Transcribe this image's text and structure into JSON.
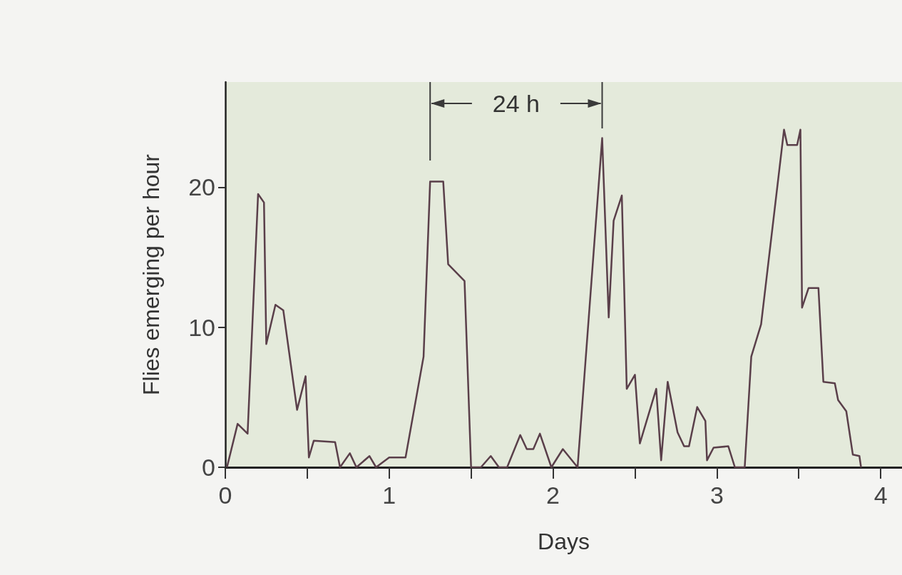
{
  "chart_data": {
    "type": "line",
    "xlabel": "Days",
    "ylabel": "Flies emerging per hour",
    "x": [
      0.01,
      0.075,
      0.136,
      0.2,
      0.236,
      0.25,
      0.306,
      0.354,
      0.438,
      0.49,
      0.51,
      0.54,
      0.67,
      0.7,
      0.76,
      0.8,
      0.88,
      0.92,
      1.0,
      1.1,
      1.21,
      1.25,
      1.33,
      1.36,
      1.46,
      1.5,
      1.56,
      1.62,
      1.67,
      1.72,
      1.8,
      1.84,
      1.88,
      1.92,
      1.99,
      2.06,
      2.15,
      2.3,
      2.34,
      2.37,
      2.42,
      2.45,
      2.5,
      2.53,
      2.63,
      2.66,
      2.7,
      2.76,
      2.8,
      2.83,
      2.88,
      2.93,
      2.94,
      2.98,
      3.07,
      3.11,
      3.17,
      3.21,
      3.27,
      3.41,
      3.43,
      3.49,
      3.51,
      3.52,
      3.56,
      3.62,
      3.65,
      3.72,
      3.74,
      3.79,
      3.83,
      3.87,
      3.88
    ],
    "series": [
      {
        "color": "#5a3f4a",
        "values": [
          0,
          3.1,
          2.4,
          19.5,
          18.9,
          8.8,
          11.6,
          11.2,
          4.1,
          6.5,
          0.7,
          1.9,
          1.8,
          0,
          1.0,
          0,
          0.8,
          0,
          0.7,
          0.7,
          7.9,
          20.4,
          20.4,
          14.5,
          13.3,
          0,
          0,
          0.8,
          0,
          0,
          2.3,
          1.3,
          1.3,
          2.4,
          0,
          1.3,
          0,
          23.5,
          10.7,
          17.6,
          19.4,
          5.6,
          6.6,
          1.7,
          5.6,
          0.5,
          6.1,
          2.5,
          1.5,
          1.5,
          4.3,
          3.3,
          0.5,
          1.4,
          1.5,
          0,
          0,
          7.9,
          10.2,
          24.1,
          23.0,
          23.0,
          24.1,
          11.4,
          12.8,
          12.8,
          6.1,
          6.0,
          4.8,
          4.0,
          0.9,
          0.8,
          0
        ]
      }
    ],
    "xlim": [
      0,
      4.13
    ],
    "xticks": [
      0,
      {
        "value": 0.5,
        "label": null
      },
      1,
      {
        "value": 1.5,
        "label": null
      },
      2,
      {
        "value": 2.5,
        "label": null
      },
      3,
      {
        "value": 3.5,
        "label": null
      },
      4
    ],
    "ylim": [
      0,
      27.5
    ],
    "yticks": [
      0,
      10,
      20
    ],
    "ref_lines": [
      {
        "axis": "x",
        "value": 1.25,
        "color": "#3a3a3a"
      },
      {
        "axis": "x",
        "value": 2.3,
        "label": "24 h",
        "color": "#3a3a3a"
      }
    ],
    "grid": false,
    "marker": "none",
    "line_style": "solid"
  }
}
